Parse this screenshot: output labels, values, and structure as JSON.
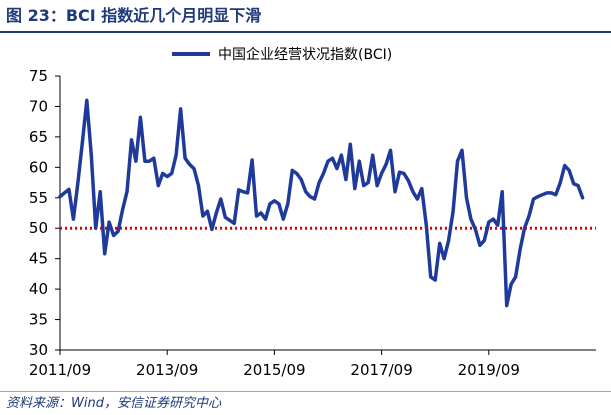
{
  "figure": {
    "title": "图 23：BCI 指数近几个月明显下滑",
    "source": "资料来源：Wind，安信证券研究中心"
  },
  "chart_data": {
    "type": "line",
    "title": "",
    "xlabel": "",
    "ylabel": "",
    "ylim": [
      30,
      75
    ],
    "yticks": [
      30,
      35,
      40,
      45,
      50,
      55,
      60,
      65,
      70,
      75
    ],
    "xticks": [
      "2011/09",
      "2013/09",
      "2015/09",
      "2017/09",
      "2019/09"
    ],
    "xrange": [
      "2011-09",
      "2021-09"
    ],
    "legend_position": "top-center",
    "grid": false,
    "series": [
      {
        "name": "中国企业经营状况指数(BCI)",
        "color": "#1f3a9a",
        "points": [
          [
            "2011-09",
            55.2
          ],
          [
            "2011-10",
            55.8
          ],
          [
            "2011-11",
            56.4
          ],
          [
            "2011-12",
            51.5
          ],
          [
            "2012-01",
            57.5
          ],
          [
            "2012-02",
            64.0
          ],
          [
            "2012-03",
            71.0
          ],
          [
            "2012-04",
            62.0
          ],
          [
            "2012-05",
            50.0
          ],
          [
            "2012-06",
            56.0
          ],
          [
            "2012-07",
            45.8
          ],
          [
            "2012-08",
            51.0
          ],
          [
            "2012-09",
            48.8
          ],
          [
            "2012-10",
            49.5
          ],
          [
            "2012-11",
            53.0
          ],
          [
            "2012-12",
            56.0
          ],
          [
            "2013-01",
            64.5
          ],
          [
            "2013-02",
            61.0
          ],
          [
            "2013-03",
            68.2
          ],
          [
            "2013-04",
            61.0
          ],
          [
            "2013-05",
            61.0
          ],
          [
            "2013-06",
            61.5
          ],
          [
            "2013-07",
            57.0
          ],
          [
            "2013-08",
            59.0
          ],
          [
            "2013-09",
            58.5
          ],
          [
            "2013-10",
            59.0
          ],
          [
            "2013-11",
            62.0
          ],
          [
            "2013-12",
            69.6
          ],
          [
            "2014-01",
            61.5
          ],
          [
            "2014-02",
            60.5
          ],
          [
            "2014-03",
            59.8
          ],
          [
            "2014-04",
            57.0
          ],
          [
            "2014-05",
            52.0
          ],
          [
            "2014-06",
            52.8
          ],
          [
            "2014-07",
            49.8
          ],
          [
            "2014-08",
            52.5
          ],
          [
            "2014-09",
            54.8
          ],
          [
            "2014-10",
            51.8
          ],
          [
            "2014-11",
            51.3
          ],
          [
            "2014-12",
            50.8
          ],
          [
            "2015-01",
            56.3
          ],
          [
            "2015-02",
            56.0
          ],
          [
            "2015-03",
            55.8
          ],
          [
            "2015-04",
            61.2
          ],
          [
            "2015-05",
            52.0
          ],
          [
            "2015-06",
            52.5
          ],
          [
            "2015-07",
            51.5
          ],
          [
            "2015-08",
            54.0
          ],
          [
            "2015-09",
            54.5
          ],
          [
            "2015-10",
            54.0
          ],
          [
            "2015-11",
            51.5
          ],
          [
            "2015-12",
            54.0
          ],
          [
            "2016-01",
            59.5
          ],
          [
            "2016-02",
            59.0
          ],
          [
            "2016-03",
            58.0
          ],
          [
            "2016-04",
            56.0
          ],
          [
            "2016-05",
            55.2
          ],
          [
            "2016-06",
            54.8
          ],
          [
            "2016-07",
            57.5
          ],
          [
            "2016-08",
            59.0
          ],
          [
            "2016-09",
            61.0
          ],
          [
            "2016-10",
            61.5
          ],
          [
            "2016-11",
            59.8
          ],
          [
            "2016-12",
            62.0
          ],
          [
            "2017-01",
            58.0
          ],
          [
            "2017-02",
            63.8
          ],
          [
            "2017-03",
            56.5
          ],
          [
            "2017-04",
            61.0
          ],
          [
            "2017-05",
            57.0
          ],
          [
            "2017-06",
            57.5
          ],
          [
            "2017-07",
            62.0
          ],
          [
            "2017-08",
            57.0
          ],
          [
            "2017-09",
            59.0
          ],
          [
            "2017-10",
            60.5
          ],
          [
            "2017-11",
            62.8
          ],
          [
            "2017-12",
            56.0
          ],
          [
            "2018-01",
            59.2
          ],
          [
            "2018-02",
            59.0
          ],
          [
            "2018-03",
            57.8
          ],
          [
            "2018-04",
            56.0
          ],
          [
            "2018-05",
            54.8
          ],
          [
            "2018-06",
            56.5
          ],
          [
            "2018-07",
            50.5
          ],
          [
            "2018-08",
            42.0
          ],
          [
            "2018-09",
            41.5
          ],
          [
            "2018-10",
            47.5
          ],
          [
            "2018-11",
            45.0
          ],
          [
            "2018-12",
            48.0
          ],
          [
            "2019-01",
            52.8
          ],
          [
            "2019-02",
            61.0
          ],
          [
            "2019-03",
            62.8
          ],
          [
            "2019-04",
            55.0
          ],
          [
            "2019-05",
            51.5
          ],
          [
            "2019-06",
            49.8
          ],
          [
            "2019-07",
            47.2
          ],
          [
            "2019-08",
            48.0
          ],
          [
            "2019-09",
            51.0
          ],
          [
            "2019-10",
            51.5
          ],
          [
            "2019-11",
            50.5
          ],
          [
            "2019-12",
            56.0
          ],
          [
            "2020-01",
            37.3
          ],
          [
            "2020-02",
            40.8
          ],
          [
            "2020-03",
            42.0
          ],
          [
            "2020-04",
            46.5
          ],
          [
            "2020-05",
            50.0
          ],
          [
            "2020-06",
            52.0
          ],
          [
            "2020-07",
            54.8
          ],
          [
            "2020-08",
            55.2
          ],
          [
            "2020-09",
            55.5
          ],
          [
            "2020-10",
            55.8
          ],
          [
            "2020-11",
            55.8
          ],
          [
            "2020-12",
            55.5
          ],
          [
            "2021-01",
            57.5
          ],
          [
            "2021-02",
            60.3
          ],
          [
            "2021-03",
            59.5
          ],
          [
            "2021-04",
            57.3
          ],
          [
            "2021-05",
            57.0
          ],
          [
            "2021-06",
            55.0
          ]
        ]
      }
    ],
    "reference_line": {
      "value": 50,
      "color": "#e00000",
      "style": "dotted"
    }
  }
}
